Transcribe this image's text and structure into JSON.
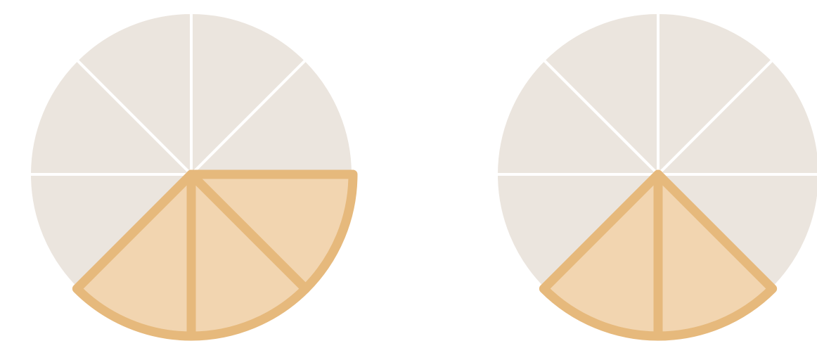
{
  "colors": {
    "background": "#ffffff",
    "slice_empty": "#ebe5de",
    "slice_filled": "#f2d5b0",
    "slice_outline": "#e6b97c",
    "divider": "#ffffff"
  },
  "pies": [
    {
      "name": "fraction-circle-left",
      "total_slices": 8,
      "shaded_slices": 3,
      "shaded_positions": [
        5,
        6,
        7
      ]
    },
    {
      "name": "fraction-circle-right",
      "total_slices": 8,
      "shaded_slices": 2,
      "shaded_positions": [
        5,
        6
      ]
    }
  ]
}
